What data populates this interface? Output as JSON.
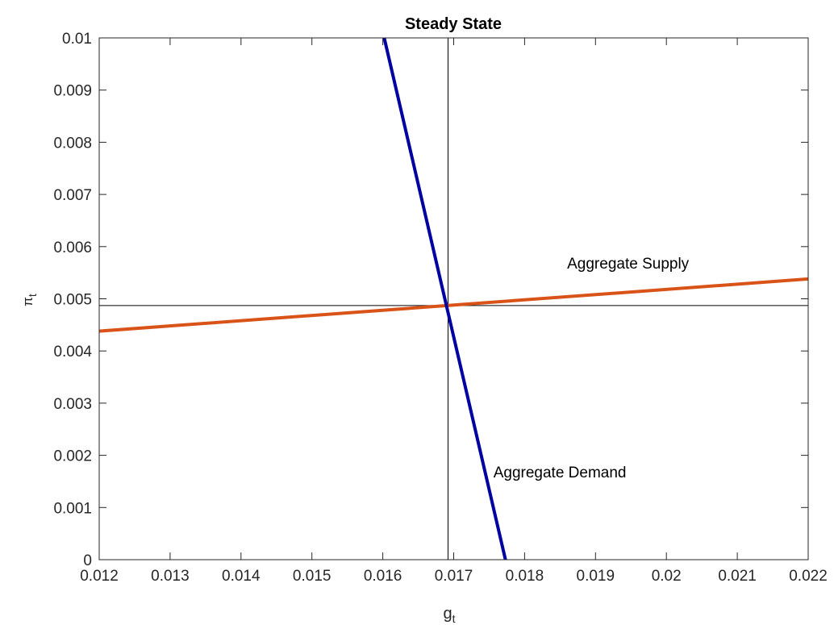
{
  "chart_data": {
    "type": "line",
    "title": "Steady State",
    "xlabel": {
      "symbol": "g",
      "subscript": "t"
    },
    "ylabel": {
      "symbol": "π",
      "subscript": "t"
    },
    "xlim": [
      0.012,
      0.022
    ],
    "ylim": [
      0,
      0.01
    ],
    "xticks": [
      0.012,
      0.013,
      0.014,
      0.015,
      0.016,
      0.017,
      0.018,
      0.019,
      0.02,
      0.021,
      0.022
    ],
    "xtick_labels": [
      "0.012",
      "0.013",
      "0.014",
      "0.015",
      "0.016",
      "0.017",
      "0.018",
      "0.019",
      "0.02",
      "0.021",
      "0.022"
    ],
    "yticks": [
      0,
      0.001,
      0.002,
      0.003,
      0.004,
      0.005,
      0.006,
      0.007,
      0.008,
      0.009,
      0.01
    ],
    "ytick_labels": [
      "0",
      "0.001",
      "0.002",
      "0.003",
      "0.004",
      "0.005",
      "0.006",
      "0.007",
      "0.008",
      "0.009",
      "0.01"
    ],
    "grid": false,
    "series": [
      {
        "name": "Aggregate Supply",
        "color": "#D95319",
        "x": [
          0.012,
          0.022
        ],
        "y": [
          0.00438,
          0.00538
        ]
      },
      {
        "name": "Aggregate Demand",
        "color": "#0000A0",
        "x": [
          0.01602,
          0.01773
        ],
        "y": [
          0.01,
          0
        ]
      }
    ],
    "reference_lines": {
      "vertical_x": 0.01692,
      "horizontal_y": 0.00487,
      "color": "#000000"
    },
    "annotations": [
      {
        "text": "Aggregate Supply",
        "x": 0.0186,
        "y": 0.00558
      },
      {
        "text": "Aggregate Demand",
        "x": 0.01756,
        "y": 0.00158
      }
    ]
  }
}
